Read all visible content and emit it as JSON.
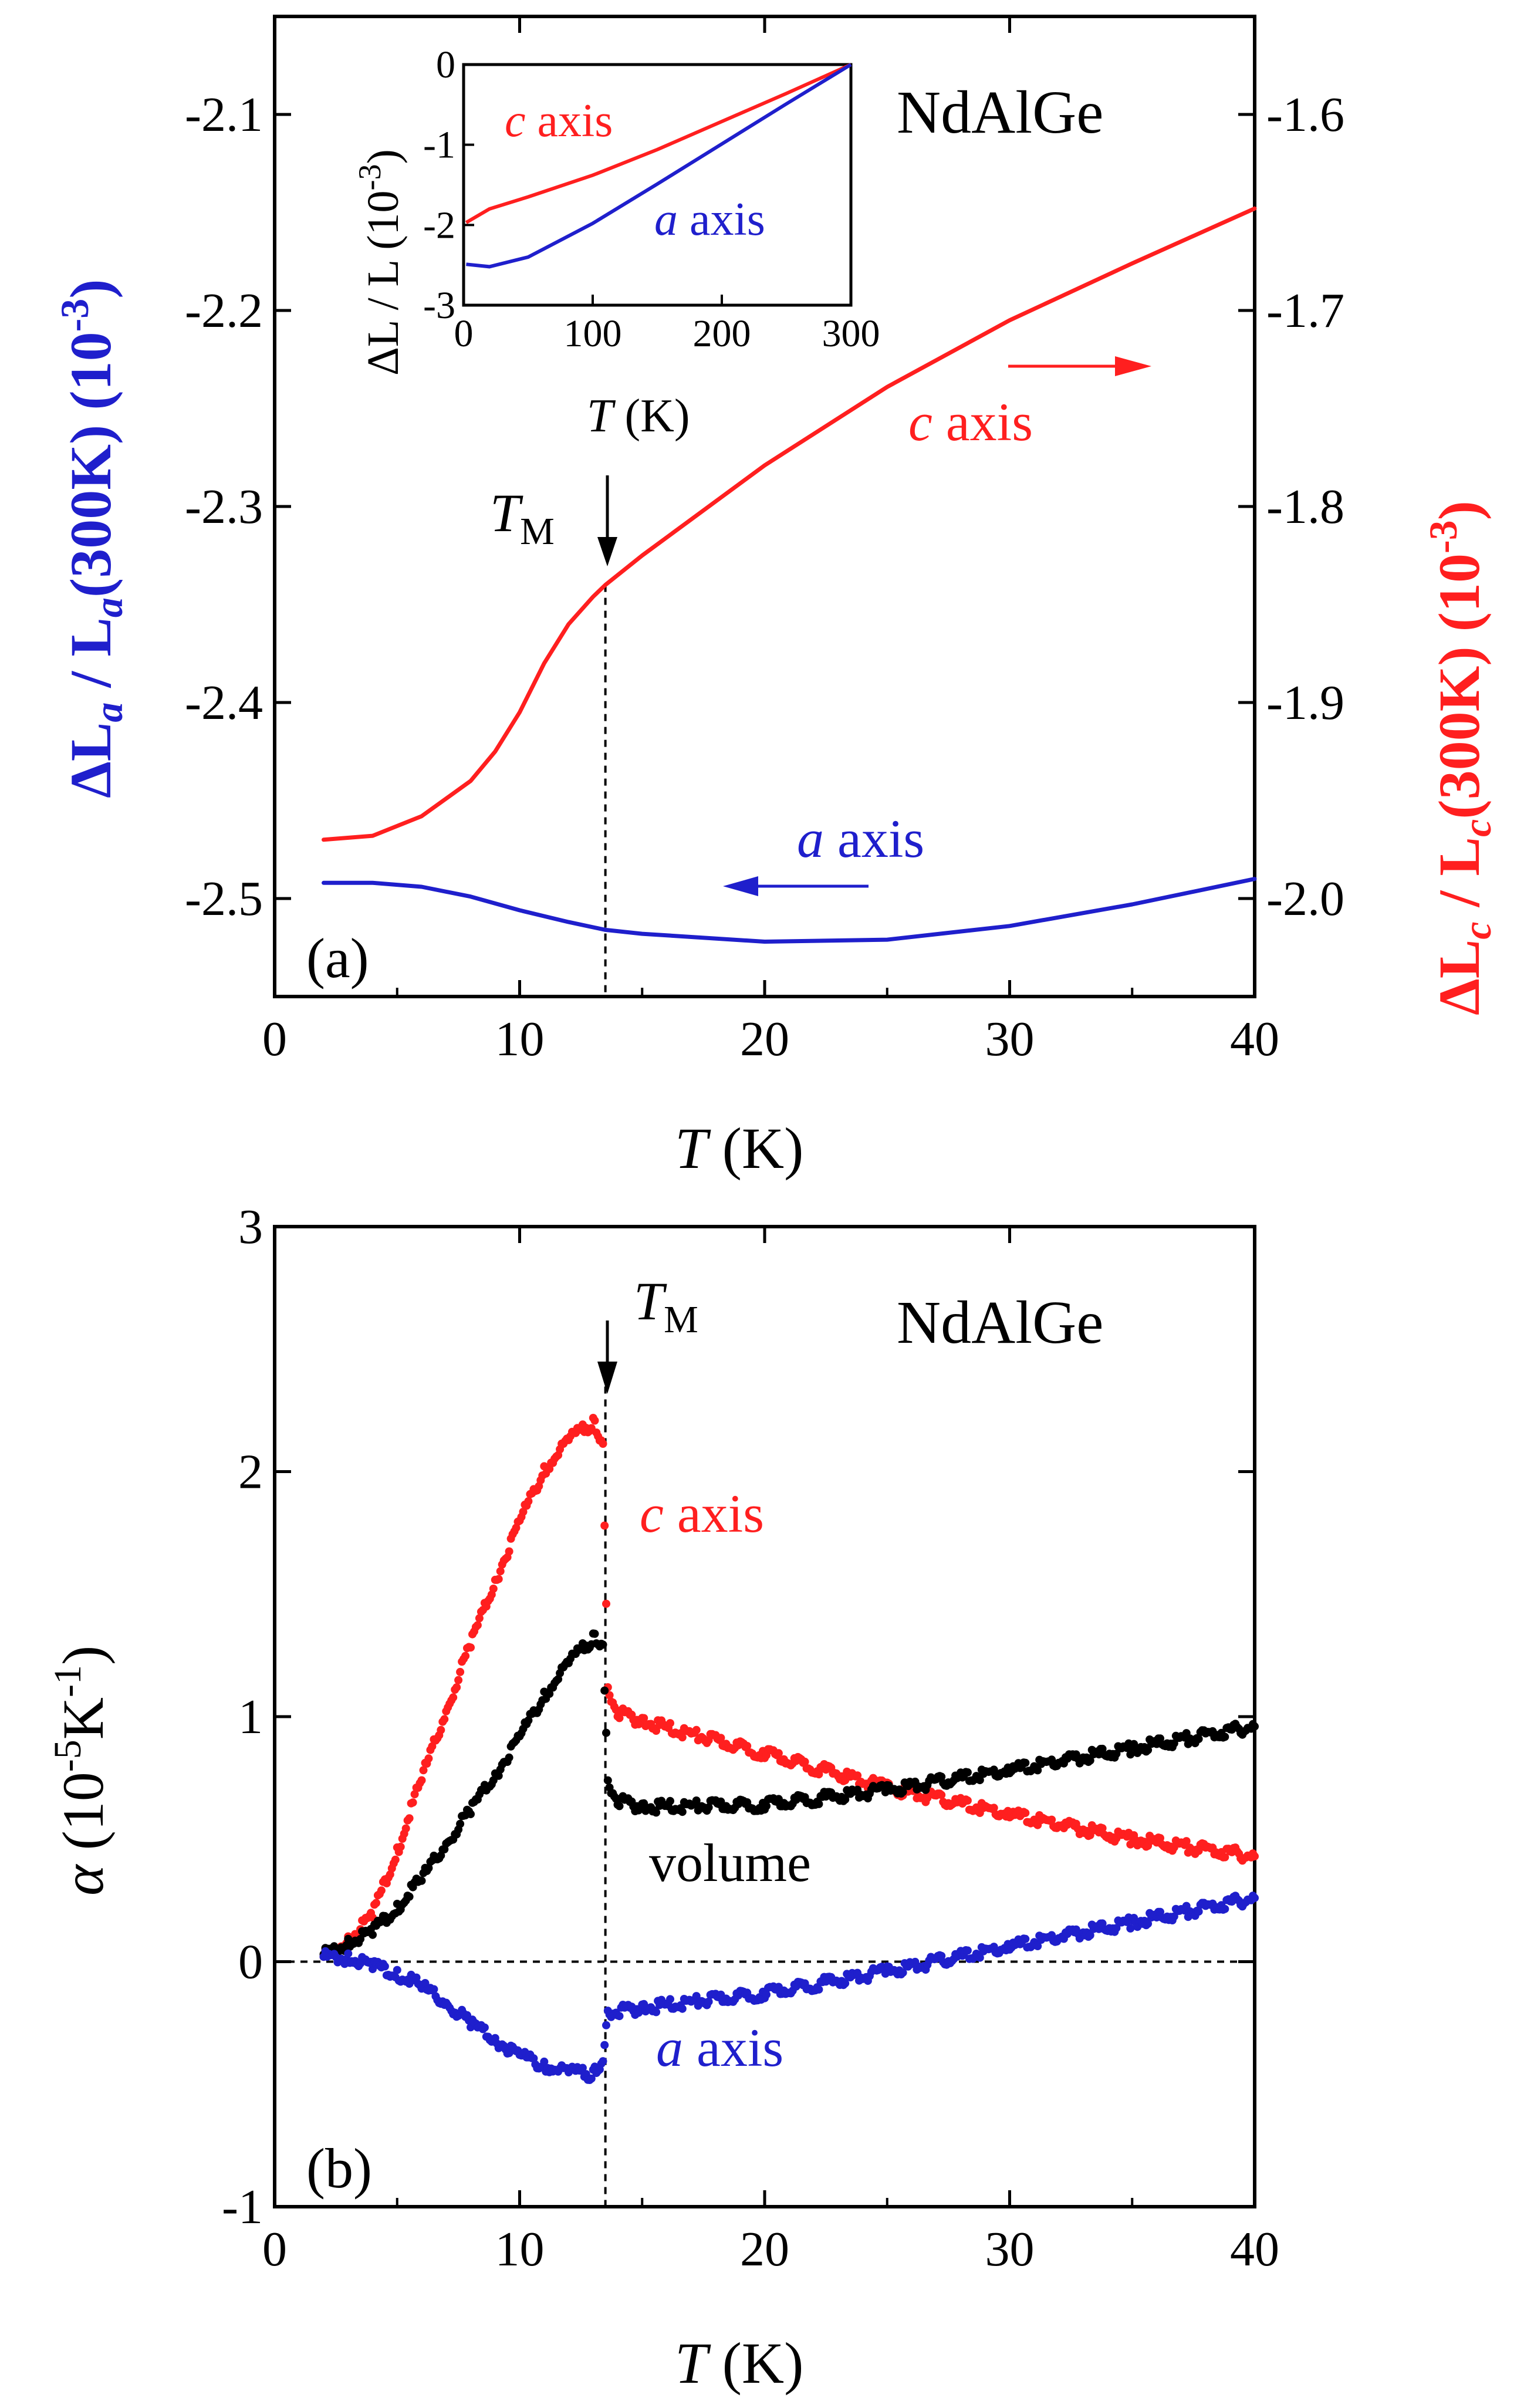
{
  "chart_data": [
    {
      "id": "panel-a",
      "type": "line",
      "panel_label": "(a)",
      "title": "NdAlGe",
      "xlabel": {
        "var": "T",
        "unit": "(K)"
      },
      "xlim": [
        0,
        40
      ],
      "xticks": [
        0,
        10,
        20,
        30,
        40
      ],
      "ylabel_left": {
        "text": "ΔL_a / L_a(300K) (10^-3)",
        "color": "#1f1fcc"
      },
      "ylim_left": [
        -2.55,
        -2.05
      ],
      "yticks_left": [
        -2.5,
        -2.4,
        -2.3,
        -2.2,
        -2.1
      ],
      "ylabel_right": {
        "text": "ΔL_c / L_c(300K) (10^-3)",
        "color": "#ff1f1f"
      },
      "ylim_right": [
        -2.05,
        -1.55
      ],
      "yticks_right": [
        -2.0,
        -1.9,
        -1.8,
        -1.7,
        -1.6
      ],
      "transition": {
        "label": "T_M",
        "T": 13.5
      },
      "series": [
        {
          "name": "c axis",
          "axis": "right",
          "color": "#ff1f1f",
          "x": [
            2,
            4,
            6,
            8,
            9,
            10,
            11,
            12,
            13,
            13.5,
            15,
            20,
            25,
            30,
            35,
            40
          ],
          "y": [
            -1.97,
            -1.968,
            -1.958,
            -1.94,
            -1.925,
            -1.905,
            -1.88,
            -1.86,
            -1.846,
            -1.84,
            -1.825,
            -1.779,
            -1.739,
            -1.705,
            -1.676,
            -1.648
          ]
        },
        {
          "name": "a axis",
          "axis": "left",
          "color": "#1f1fcc",
          "x": [
            2,
            4,
            6,
            8,
            10,
            12,
            13.5,
            15,
            20,
            25,
            30,
            35,
            40
          ],
          "y": [
            -2.492,
            -2.492,
            -2.494,
            -2.499,
            -2.506,
            -2.512,
            -2.516,
            -2.518,
            -2.522,
            -2.521,
            -2.514,
            -2.503,
            -2.49
          ]
        }
      ],
      "annotations": [
        {
          "text": "c axis",
          "direction": "right",
          "color": "#ff1f1f"
        },
        {
          "text": "a axis",
          "direction": "left",
          "color": "#1f1fcc"
        }
      ],
      "inset": {
        "xlabel": {
          "var": "T",
          "unit": "(K)"
        },
        "ylabel": "ΔL / L (10^-3)",
        "xlim": [
          0,
          300
        ],
        "ylim": [
          -3,
          0
        ],
        "xticks": [
          0,
          100,
          200,
          300
        ],
        "yticks": [
          0,
          -1,
          -2,
          -3
        ],
        "series": [
          {
            "name": "c axis",
            "color": "#ff1f1f",
            "x": [
              2,
              20,
              50,
              100,
              150,
              200,
              250,
              300
            ],
            "y": [
              -1.97,
              -1.8,
              -1.65,
              -1.38,
              -1.06,
              -0.71,
              -0.36,
              0
            ]
          },
          {
            "name": "a axis",
            "color": "#1f1fcc",
            "x": [
              2,
              20,
              50,
              100,
              150,
              200,
              250,
              300
            ],
            "y": [
              -2.49,
              -2.52,
              -2.4,
              -1.98,
              -1.49,
              -0.99,
              -0.49,
              0
            ]
          }
        ]
      }
    },
    {
      "id": "panel-b",
      "type": "scatter",
      "panel_label": "(b)",
      "title": "NdAlGe",
      "xlabel": {
        "var": "T",
        "unit": "(K)"
      },
      "xlim": [
        0,
        40
      ],
      "xticks": [
        0,
        10,
        20,
        30,
        40
      ],
      "ylabel": "α (10^-5 K^-1)",
      "ylim": [
        -1,
        3
      ],
      "yticks": [
        -1,
        0,
        1,
        2,
        3
      ],
      "zero_line": true,
      "transition": {
        "label": "T_M",
        "T": 13.5
      },
      "series": [
        {
          "name": "c axis",
          "color": "#ff1f1f",
          "x": [
            2,
            3,
            4,
            5,
            6,
            7,
            8,
            9,
            10,
            11,
            12,
            13,
            13.4,
            13.6,
            14,
            15,
            20,
            25,
            30,
            35,
            40
          ],
          "y": [
            0.02,
            0.08,
            0.2,
            0.45,
            0.75,
            1.02,
            1.3,
            1.55,
            1.8,
            2.0,
            2.13,
            2.2,
            2.12,
            1.1,
            1.02,
            0.98,
            0.85,
            0.71,
            0.6,
            0.5,
            0.43
          ]
        },
        {
          "name": "volume",
          "color": "#000000",
          "x": [
            2,
            3,
            4,
            5,
            6,
            7,
            8,
            9,
            10,
            11,
            12,
            13,
            13.4,
            13.6,
            14,
            15,
            20,
            25,
            30,
            35,
            40
          ],
          "y": [
            0.03,
            0.07,
            0.13,
            0.22,
            0.34,
            0.48,
            0.62,
            0.76,
            0.92,
            1.08,
            1.22,
            1.32,
            1.3,
            0.72,
            0.66,
            0.63,
            0.64,
            0.7,
            0.78,
            0.87,
            0.96
          ]
        },
        {
          "name": "a axis",
          "color": "#1f1fcc",
          "x": [
            2,
            3,
            4,
            5,
            6,
            7,
            8,
            9,
            10,
            11,
            12,
            13,
            13.4,
            13.6,
            14,
            15,
            20,
            25,
            30,
            35,
            40
          ],
          "y": [
            0.02,
            0.01,
            -0.01,
            -0.05,
            -0.1,
            -0.17,
            -0.25,
            -0.32,
            -0.38,
            -0.43,
            -0.45,
            -0.46,
            -0.4,
            -0.22,
            -0.2,
            -0.19,
            -0.13,
            -0.04,
            0.06,
            0.16,
            0.26
          ]
        }
      ],
      "labels": [
        {
          "text": "c axis",
          "color": "#ff1f1f"
        },
        {
          "text": "volume",
          "color": "#000000"
        },
        {
          "text": "a axis",
          "color": "#1f1fcc"
        }
      ]
    }
  ]
}
